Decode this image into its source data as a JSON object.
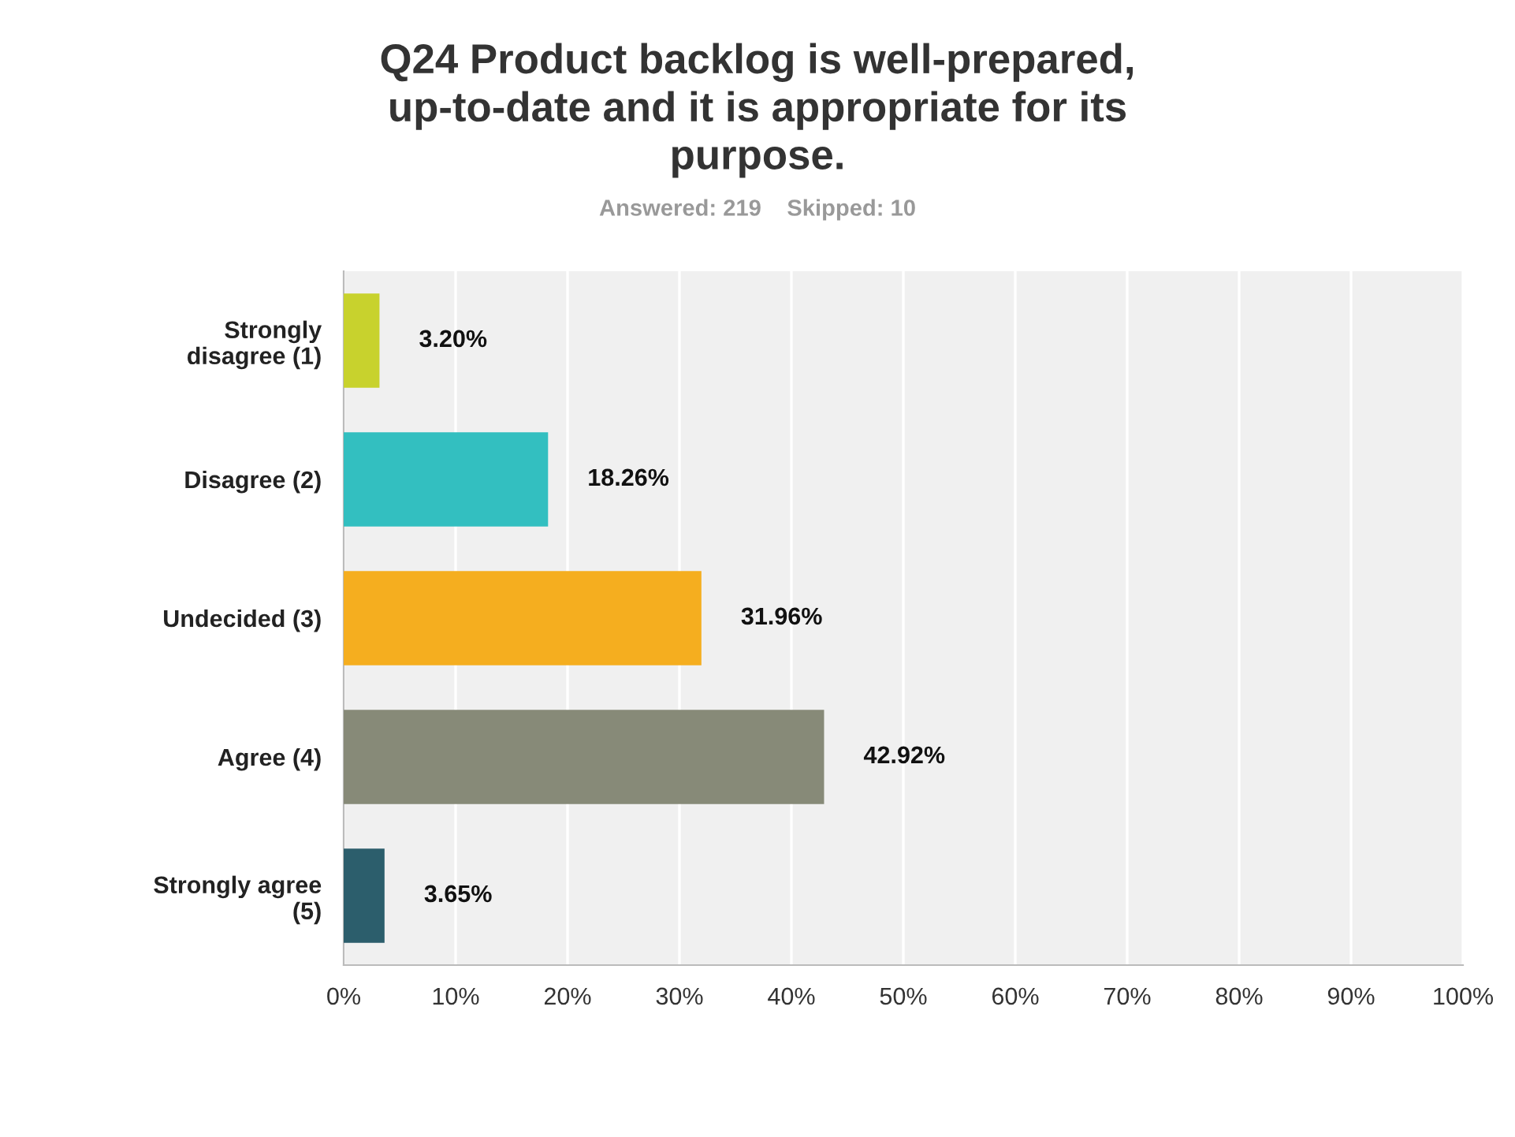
{
  "chart_data": {
    "type": "bar",
    "orientation": "horizontal",
    "title": "Q24 Product backlog is well-prepared, up-to-date and it is appropriate for its purpose.",
    "subtitle": "Answered: 219    Skipped: 10",
    "categories": [
      "Strongly disagree (1)",
      "Disagree (2)",
      "Undecided (3)",
      "Agree (4)",
      "Strongly agree (5)"
    ],
    "values": [
      3.2,
      18.26,
      31.96,
      42.92,
      3.65
    ],
    "colors": [
      "#c8d22d",
      "#33bfc0",
      "#f5ae1f",
      "#878a78",
      "#2c5e6c"
    ],
    "value_labels": [
      "3.20%",
      "18.26%",
      "31.96%",
      "42.92%",
      "3.65%"
    ],
    "xlim": [
      0,
      100
    ],
    "xticks": [
      {
        "value": 0,
        "label": "0%"
      },
      {
        "value": 10,
        "label": "10%"
      },
      {
        "value": 20,
        "label": "20%"
      },
      {
        "value": 30,
        "label": "30%"
      },
      {
        "value": 40,
        "label": "40%"
      },
      {
        "value": 50,
        "label": "50%"
      },
      {
        "value": 60,
        "label": "60%"
      },
      {
        "value": 70,
        "label": "70%"
      },
      {
        "value": 80,
        "label": "80%"
      },
      {
        "value": 90,
        "label": "90%"
      },
      {
        "value": 100,
        "label": "100%"
      }
    ],
    "grid": "x",
    "legend": false
  }
}
